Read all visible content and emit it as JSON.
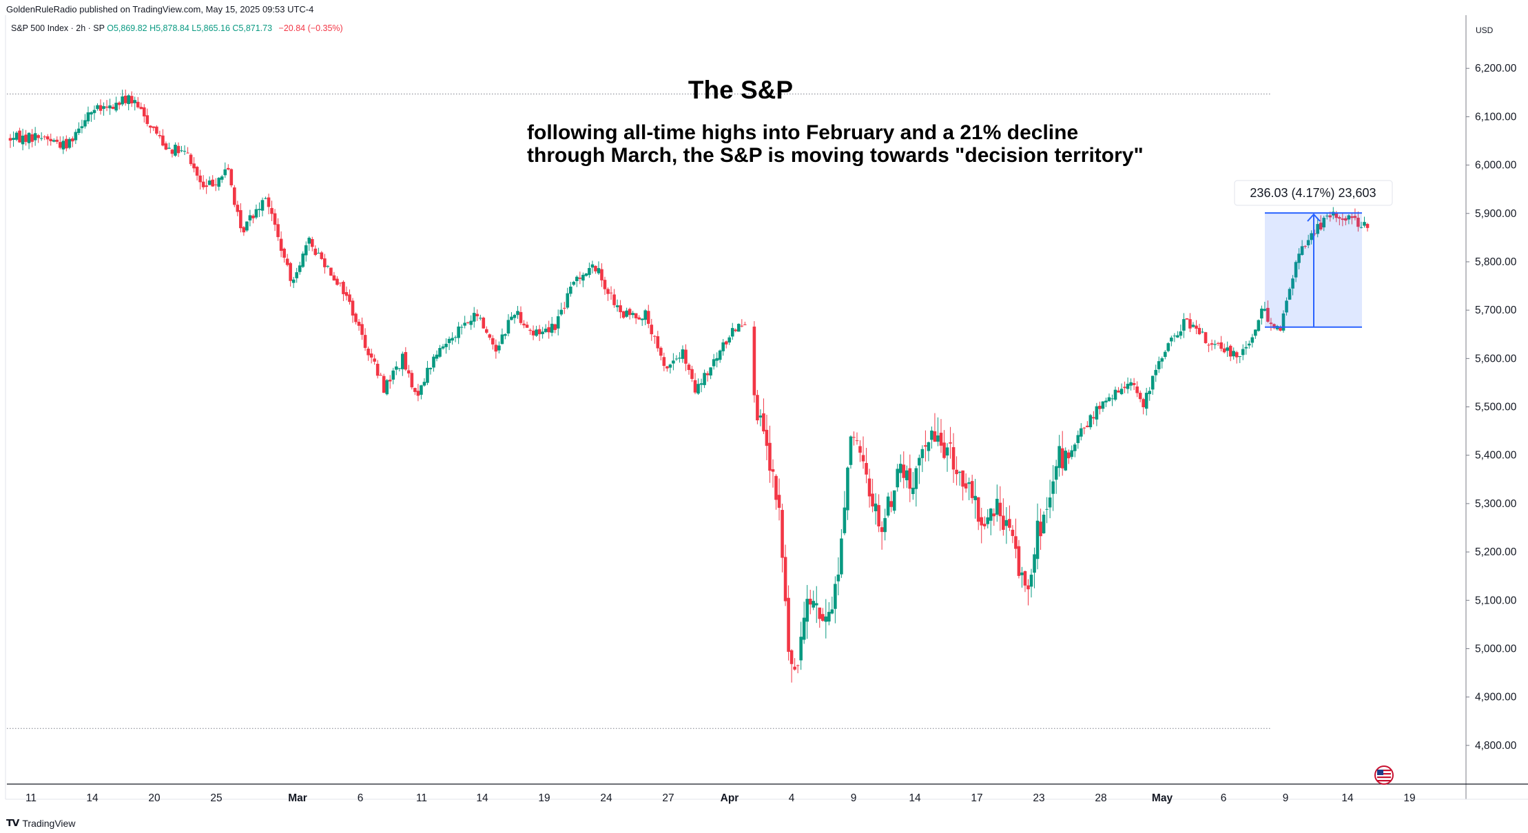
{
  "header": {
    "publisher": "GoldenRuleRadio published on TradingView.com, May 15, 2025 09:53 UTC-4"
  },
  "legend": {
    "symbol": "S&P 500 Index · 2h · SP",
    "open": "O5,869.82",
    "high": "H5,878.84",
    "low": "L5,865.16",
    "close": "C5,871.73",
    "change": "−20.84 (−0.35%)"
  },
  "footer": {
    "brand": "TradingView",
    "logo": "tradingview-logo-icon"
  },
  "chart_data": {
    "type": "candlestick",
    "title": "The S&P",
    "subtitle": [
      "following all-time highs into February and a 21% decline",
      "through March, the S&P is moving towards \"decision territory\""
    ],
    "currency": "USD",
    "ylim": [
      4720,
      6310
    ],
    "yticks": [
      "6,200.00",
      "6,100.00",
      "6,000.00",
      "5,900.00",
      "5,800.00",
      "5,700.00",
      "5,600.00",
      "5,500.00",
      "5,400.00",
      "5,300.00",
      "5,200.00",
      "5,100.00",
      "5,000.00",
      "4,900.00",
      "4,800.00"
    ],
    "ytick_values": [
      6200,
      6100,
      6000,
      5900,
      5800,
      5700,
      5600,
      5500,
      5400,
      5300,
      5200,
      5100,
      5000,
      4900,
      4800
    ],
    "xticks": [
      "11",
      "14",
      "20",
      "25",
      "Mar",
      "6",
      "11",
      "14",
      "19",
      "24",
      "27",
      "Apr",
      "4",
      "9",
      "14",
      "17",
      "23",
      "28",
      "May",
      "6",
      "9",
      "14",
      "19"
    ],
    "reference_lines": [
      6147,
      4835
    ],
    "measure": {
      "label": "236.03 (4.17%) 23,603",
      "from": 5665,
      "to": 5901
    },
    "up_color": "#089981",
    "down_color": "#f23645",
    "anchors": [
      [
        0,
        6055
      ],
      [
        10,
        6060
      ],
      [
        18,
        6040
      ],
      [
        25,
        6110
      ],
      [
        32,
        6118
      ],
      [
        38,
        6140
      ],
      [
        42,
        6110
      ],
      [
        50,
        6040
      ],
      [
        57,
        6020
      ],
      [
        62,
        5950
      ],
      [
        70,
        5990
      ],
      [
        74,
        5860
      ],
      [
        82,
        5940
      ],
      [
        90,
        5760
      ],
      [
        96,
        5840
      ],
      [
        102,
        5790
      ],
      [
        108,
        5730
      ],
      [
        114,
        5630
      ],
      [
        120,
        5540
      ],
      [
        126,
        5600
      ],
      [
        130,
        5520
      ],
      [
        136,
        5600
      ],
      [
        142,
        5650
      ],
      [
        150,
        5690
      ],
      [
        156,
        5620
      ],
      [
        162,
        5700
      ],
      [
        168,
        5650
      ],
      [
        175,
        5670
      ],
      [
        182,
        5770
      ],
      [
        188,
        5790
      ],
      [
        196,
        5690
      ],
      [
        204,
        5690
      ],
      [
        210,
        5580
      ],
      [
        216,
        5610
      ],
      [
        220,
        5530
      ],
      [
        226,
        5590
      ],
      [
        232,
        5660
      ],
      [
        236,
        5680
      ],
      [
        240,
        5480
      ],
      [
        243,
        5405
      ],
      [
        247,
        5280
      ],
      [
        250,
        5000
      ],
      [
        252,
        4930
      ],
      [
        256,
        5130
      ],
      [
        262,
        5040
      ],
      [
        266,
        5160
      ],
      [
        270,
        5450
      ],
      [
        275,
        5350
      ],
      [
        280,
        5250
      ],
      [
        286,
        5380
      ],
      [
        290,
        5320
      ],
      [
        294,
        5440
      ],
      [
        300,
        5420
      ],
      [
        306,
        5350
      ],
      [
        312,
        5260
      ],
      [
        318,
        5290
      ],
      [
        323,
        5200
      ],
      [
        326,
        5120
      ],
      [
        330,
        5240
      ],
      [
        334,
        5290
      ],
      [
        337,
        5400
      ],
      [
        340,
        5390
      ],
      [
        344,
        5450
      ],
      [
        350,
        5500
      ],
      [
        356,
        5530
      ],
      [
        360,
        5560
      ],
      [
        364,
        5500
      ],
      [
        370,
        5610
      ],
      [
        378,
        5680
      ],
      [
        382,
        5650
      ],
      [
        388,
        5620
      ],
      [
        394,
        5610
      ],
      [
        398,
        5630
      ],
      [
        402,
        5700
      ],
      [
        408,
        5660
      ],
      [
        413,
        5800
      ],
      [
        418,
        5860
      ],
      [
        424,
        5895
      ],
      [
        431,
        5892
      ],
      [
        436,
        5870
      ]
    ],
    "gaps": [
      [
        237,
        238
      ]
    ]
  }
}
